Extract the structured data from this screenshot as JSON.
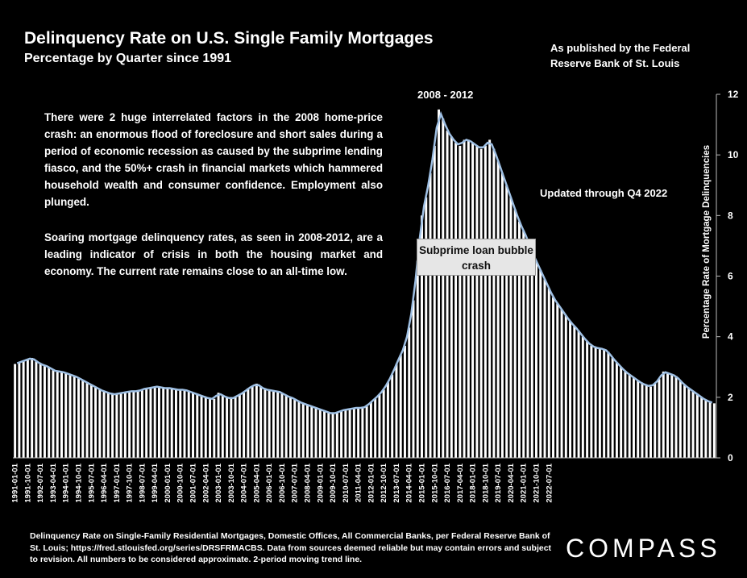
{
  "texts": {
    "title": "Delinquency Rate on U.S. Single Family Mortgages",
    "subtitle": "Percentage by Quarter since 1991",
    "source": "As published by the Federal Reserve Bank of St. Louis",
    "para1": "There were 2 huge interrelated factors in the 2008 home-price crash: an enormous flood of foreclosure and short sales during a period of economic recession as caused by the subprime lending fiasco, and the 50%+ crash in financial markets which hammered household wealth and consumer confidence. Employment also plunged.",
    "para2": "Soaring mortgage delinquency rates, as seen in 2008-2012, are a leading indicator of crisis in both the housing market and economy. The current rate remains close to an all-time low.",
    "updated": "Updated through Q4 2022",
    "period": "2008 - 2012",
    "callout": "Subprime loan bubble crash",
    "footer": "Delinquency Rate on Single-Family Residential Mortgages, Domestic Offices, All Commercial Banks, per Federal Reserve Bank of St. Louis; https://fred.stlouisfed.org/series/DRSFRMACBS. Data from sources deemed reliable but may contain errors and subject to revision. All numbers to be considered approximate. 2-period moving trend line.",
    "brand": "COMPASS"
  },
  "chart_data": {
    "type": "bar",
    "title": "Delinquency Rate on U.S. Single Family Mortgages",
    "ylabel": "Percentage Rate of Mortgage Delinquencies",
    "ylim": [
      0,
      12
    ],
    "yticks": [
      0,
      2,
      4,
      6,
      8,
      10,
      12
    ],
    "start_year": 1991,
    "end": "2022-10-01",
    "xtick_labels": [
      "1991-01-01",
      "1991-10-01",
      "1992-07-01",
      "1993-04-01",
      "1994-01-01",
      "1994-10-01",
      "1995-07-01",
      "1996-04-01",
      "1997-01-01",
      "1997-10-01",
      "1998-07-01",
      "1999-04-01",
      "2000-01-01",
      "2000-10-01",
      "2001-07-01",
      "2002-04-01",
      "2003-01-01",
      "2003-10-01",
      "2004-07-01",
      "2005-04-01",
      "2006-01-01",
      "2006-10-01",
      "2007-07-01",
      "2008-04-01",
      "2009-01-01",
      "2009-10-01",
      "2010-07-01",
      "2011-04-01",
      "2012-01-01",
      "2012-10-01",
      "2013-07-01",
      "2014-04-01",
      "2015-01-01",
      "2015-10-01",
      "2016-07-01",
      "2017-04-01",
      "2018-01-01",
      "2018-10-01",
      "2019-07-01",
      "2020-04-01",
      "2021-01-01",
      "2021-10-01",
      "2022-07-01"
    ],
    "values": [
      3.1,
      3.15,
      3.2,
      3.25,
      3.3,
      3.2,
      3.1,
      3.05,
      3.0,
      2.9,
      2.85,
      2.85,
      2.8,
      2.75,
      2.7,
      2.65,
      2.55,
      2.5,
      2.4,
      2.35,
      2.25,
      2.2,
      2.15,
      2.1,
      2.1,
      2.15,
      2.15,
      2.2,
      2.2,
      2.2,
      2.25,
      2.3,
      2.3,
      2.35,
      2.35,
      2.3,
      2.3,
      2.3,
      2.25,
      2.25,
      2.25,
      2.2,
      2.15,
      2.1,
      2.05,
      2.0,
      1.95,
      1.95,
      2.15,
      2.05,
      2.0,
      1.95,
      2.0,
      2.1,
      2.15,
      2.3,
      2.35,
      2.45,
      2.35,
      2.25,
      2.25,
      2.2,
      2.2,
      2.15,
      2.05,
      2.0,
      1.95,
      1.85,
      1.8,
      1.75,
      1.7,
      1.65,
      1.6,
      1.55,
      1.5,
      1.45,
      1.5,
      1.55,
      1.6,
      1.6,
      1.65,
      1.65,
      1.65,
      1.7,
      1.85,
      1.95,
      2.1,
      2.25,
      2.5,
      2.75,
      3.1,
      3.4,
      3.7,
      4.3,
      5.2,
      6.5,
      8.0,
      8.6,
      9.4,
      10.3,
      11.5,
      11.2,
      10.8,
      10.6,
      10.4,
      10.3,
      10.5,
      10.5,
      10.4,
      10.3,
      10.2,
      10.3,
      10.5,
      10.2,
      9.8,
      9.4,
      9.0,
      8.6,
      8.2,
      7.8,
      7.5,
      7.2,
      6.8,
      6.5,
      6.2,
      5.9,
      5.6,
      5.3,
      5.1,
      4.9,
      4.7,
      4.5,
      4.35,
      4.2,
      4.0,
      3.85,
      3.7,
      3.65,
      3.6,
      3.6,
      3.5,
      3.3,
      3.15,
      3.0,
      2.85,
      2.75,
      2.65,
      2.55,
      2.45,
      2.4,
      2.35,
      2.45,
      2.6,
      2.85,
      2.8,
      2.75,
      2.7,
      2.55,
      2.4,
      2.3,
      2.2,
      2.1,
      2.0,
      1.9,
      1.85,
      1.8
    ]
  }
}
